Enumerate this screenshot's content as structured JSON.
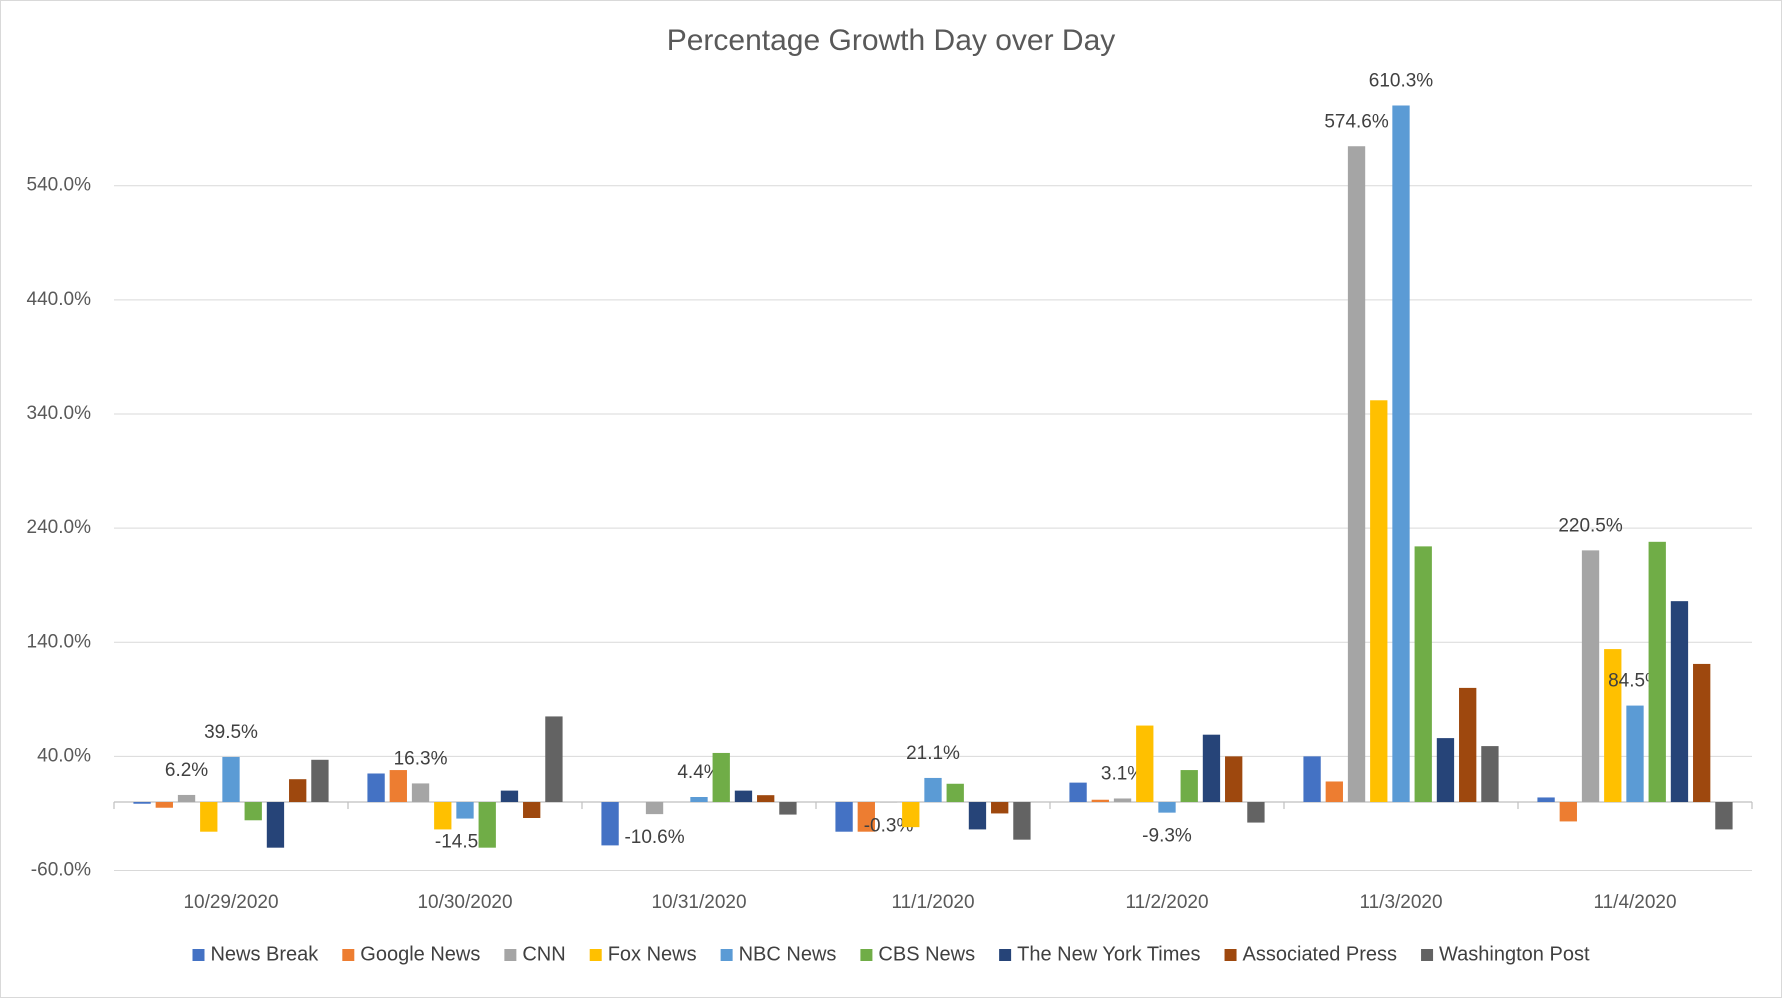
{
  "chart_data": {
    "type": "bar",
    "title": "Percentage Growth Day over Day",
    "categories": [
      "10/29/2020",
      "10/30/2020",
      "10/31/2020",
      "11/1/2020",
      "11/2/2020",
      "11/3/2020",
      "11/4/2020"
    ],
    "series": [
      {
        "name": "News Break",
        "color": "#4472c4",
        "values": [
          -1.5,
          25,
          -38,
          -26,
          17,
          40,
          4
        ],
        "value_labels": [
          null,
          null,
          null,
          null,
          null,
          null,
          null
        ]
      },
      {
        "name": "Google News",
        "color": "#ed7d31",
        "values": [
          -5,
          28,
          0,
          -26,
          2,
          18,
          -17
        ],
        "value_labels": [
          null,
          null,
          null,
          null,
          null,
          null,
          null
        ]
      },
      {
        "name": "CNN",
        "color": "#a5a5a5",
        "values": [
          6.2,
          16.3,
          -10.6,
          -0.3,
          3.1,
          574.6,
          220.5
        ],
        "value_labels": [
          "6.2%",
          "16.3%",
          "-10.6%",
          "-0.3%",
          "3.1%",
          "574.6%",
          "220.5%"
        ]
      },
      {
        "name": "Fox News",
        "color": "#ffc000",
        "values": [
          -26,
          -24,
          0,
          -22,
          67,
          352,
          134
        ],
        "value_labels": [
          null,
          null,
          null,
          null,
          null,
          null,
          null
        ]
      },
      {
        "name": "NBC News",
        "color": "#5b9bd5",
        "values": [
          39.5,
          -14.5,
          4.4,
          21.1,
          -9.3,
          610.3,
          84.5
        ],
        "value_labels": [
          "39.5%",
          "-14.5%",
          "4.4%",
          "21.1%",
          "-9.3%",
          "610.3%",
          "84.5%"
        ]
      },
      {
        "name": "CBS News",
        "color": "#70ad47",
        "values": [
          -16,
          -40,
          43,
          16,
          28,
          224,
          228
        ],
        "value_labels": [
          null,
          null,
          null,
          null,
          null,
          null,
          null
        ]
      },
      {
        "name": "The New York Times",
        "color": "#264478",
        "values": [
          -40,
          10,
          10,
          -24,
          59,
          56,
          176
        ],
        "value_labels": [
          null,
          null,
          null,
          null,
          null,
          null,
          null
        ]
      },
      {
        "name": "Associated Press",
        "color": "#9e480e",
        "values": [
          20,
          -14,
          6,
          -10,
          40,
          100,
          121
        ],
        "value_labels": [
          null,
          null,
          null,
          null,
          null,
          null,
          null
        ]
      },
      {
        "name": "Washington Post",
        "color": "#636363",
        "values": [
          37,
          75,
          -11,
          -33,
          -18,
          49,
          -24
        ],
        "value_labels": [
          null,
          null,
          null,
          null,
          null,
          null,
          null
        ]
      }
    ],
    "ylim": [
      -60,
      640
    ],
    "yticks": [
      {
        "value": -60,
        "label": "-60.0%"
      },
      {
        "value": 40,
        "label": "40.0%"
      },
      {
        "value": 140,
        "label": "140.0%"
      },
      {
        "value": 240,
        "label": "240.0%"
      },
      {
        "value": 340,
        "label": "340.0%"
      },
      {
        "value": 440,
        "label": "440.0%"
      },
      {
        "value": 540,
        "label": "540.0%"
      }
    ],
    "grid": true,
    "legend": "bottom"
  }
}
